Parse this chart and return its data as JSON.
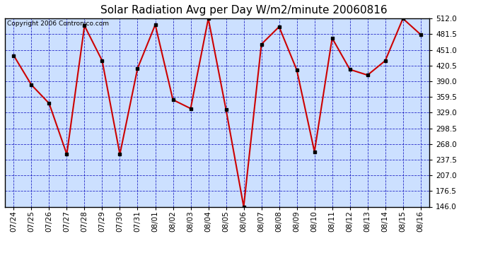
{
  "title": "Solar Radiation Avg per Day W/m2/minute 20060816",
  "copyright": "Copyright 2006 Contronico.com",
  "dates": [
    "07/24",
    "07/25",
    "07/26",
    "07/27",
    "07/28",
    "07/29",
    "07/30",
    "07/31",
    "08/01",
    "08/02",
    "08/03",
    "08/04",
    "08/05",
    "08/06",
    "08/07",
    "08/08",
    "08/09",
    "08/10",
    "08/11",
    "08/12",
    "08/13",
    "08/14",
    "08/15",
    "08/16"
  ],
  "values": [
    440,
    383,
    347,
    248,
    498,
    430,
    248,
    415,
    500,
    354,
    337,
    512,
    335,
    146,
    462,
    496,
    412,
    253,
    474,
    413,
    402,
    430,
    512,
    481
  ],
  "ymin": 146.0,
  "ymax": 512.0,
  "yticks": [
    146.0,
    176.5,
    207.0,
    237.5,
    268.0,
    298.5,
    329.0,
    359.5,
    390.0,
    420.5,
    451.0,
    481.5,
    512.0
  ],
  "line_color": "#cc0000",
  "marker_color": "#000000",
  "bg_color": "#ffffff",
  "plot_bg_color": "#cce0ff",
  "grid_color": "#0000bb",
  "title_color": "#000000",
  "border_color": "#000000",
  "copyright_color": "#000000",
  "title_fontsize": 11,
  "copyright_fontsize": 6.5,
  "tick_fontsize": 7.5,
  "line_width": 1.5,
  "marker_size": 3
}
